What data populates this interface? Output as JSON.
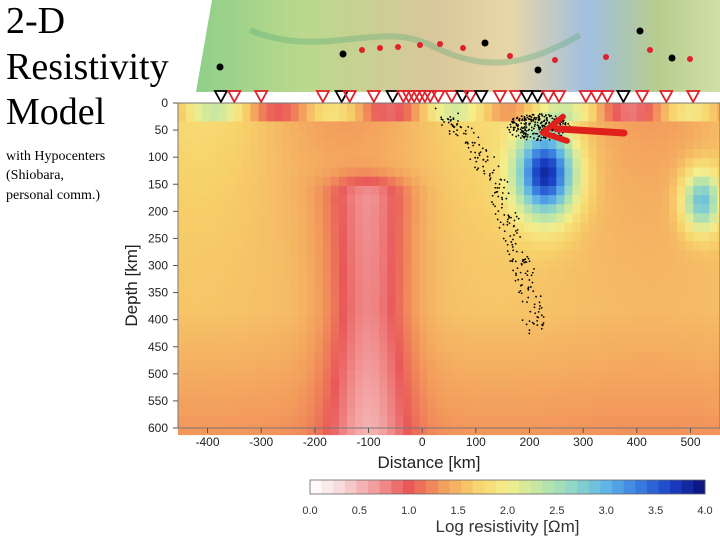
{
  "slide": {
    "title_lines": [
      "2-D",
      "Resistivity",
      "Model"
    ],
    "caption_lines": [
      "with Hypocenters",
      "(Shiobara,",
      "personal comm.)"
    ]
  },
  "chart_data": {
    "type": "heatmap",
    "title": "",
    "xlabel": "Distance [km]",
    "ylabel": "Depth [km]",
    "xlim": [
      -455,
      555
    ],
    "ylim": [
      600,
      0
    ],
    "x_ticks": [
      -400,
      -300,
      -200,
      -100,
      0,
      100,
      200,
      300,
      400,
      500
    ],
    "y_ticks": [
      0,
      50,
      100,
      150,
      200,
      250,
      300,
      350,
      400,
      450,
      500,
      550,
      600
    ],
    "colorbar": {
      "label": "Log resistivity [Ωm]",
      "range": [
        0.0,
        4.0
      ],
      "ticks": [
        0.0,
        0.5,
        1.0,
        1.5,
        2.0,
        2.5,
        3.0,
        3.5,
        4.0
      ]
    },
    "features": [
      {
        "kind": "conductor",
        "label": "",
        "x_center": -100,
        "depth_top": 160,
        "depth_bottom": 600,
        "log_resistivity": 1.0
      },
      {
        "kind": "resistor",
        "label": "",
        "x_center": 230,
        "depth_top": 40,
        "depth_bottom": 230,
        "log_resistivity": 3.7
      },
      {
        "kind": "resistor",
        "label": "",
        "x_center": 520,
        "depth_top": 120,
        "depth_bottom": 240,
        "log_resistivity": 3.0
      }
    ],
    "stations": {
      "x": [
        -375,
        -350,
        -300,
        -185,
        -150,
        -135,
        -90,
        -55,
        -35,
        -25,
        -15,
        -5,
        5,
        15,
        30,
        55,
        75,
        90,
        110,
        145,
        175,
        195,
        215,
        235,
        255,
        305,
        325,
        345,
        375,
        410,
        455,
        505
      ],
      "marker_colors": [
        "black",
        "red",
        "red",
        "red",
        "black",
        "red",
        "red",
        "black",
        "red",
        "red",
        "red",
        "red",
        "red",
        "red",
        "red",
        "red",
        "black",
        "red",
        "black",
        "red",
        "red",
        "black",
        "black",
        "red",
        "red",
        "red",
        "red",
        "red",
        "black",
        "red",
        "red",
        "red"
      ]
    },
    "hypocenters": {
      "cluster_center": [
        215,
        45
      ],
      "slab_trend": [
        [
          40,
          20
        ],
        [
          100,
          80
        ],
        [
          140,
          150
        ],
        [
          170,
          250
        ],
        [
          200,
          340
        ],
        [
          210,
          420
        ]
      ]
    },
    "annotations": [
      {
        "kind": "arrow",
        "text": "",
        "points_to": [
          225,
          55
        ]
      }
    ]
  },
  "colors": {
    "ramp": [
      "#ffffff",
      "#f7d7d7",
      "#f29a9a",
      "#e95858",
      "#f39c5c",
      "#f7d26b",
      "#f5ee8c",
      "#bfe6a6",
      "#8fd6c7",
      "#5fb5e6",
      "#3a7de0",
      "#1a3fc4",
      "#0a1078"
    ],
    "station_red": "#e0202a",
    "station_black": "#000000",
    "arrow": "#e0201a",
    "event_dot": "#000000"
  }
}
